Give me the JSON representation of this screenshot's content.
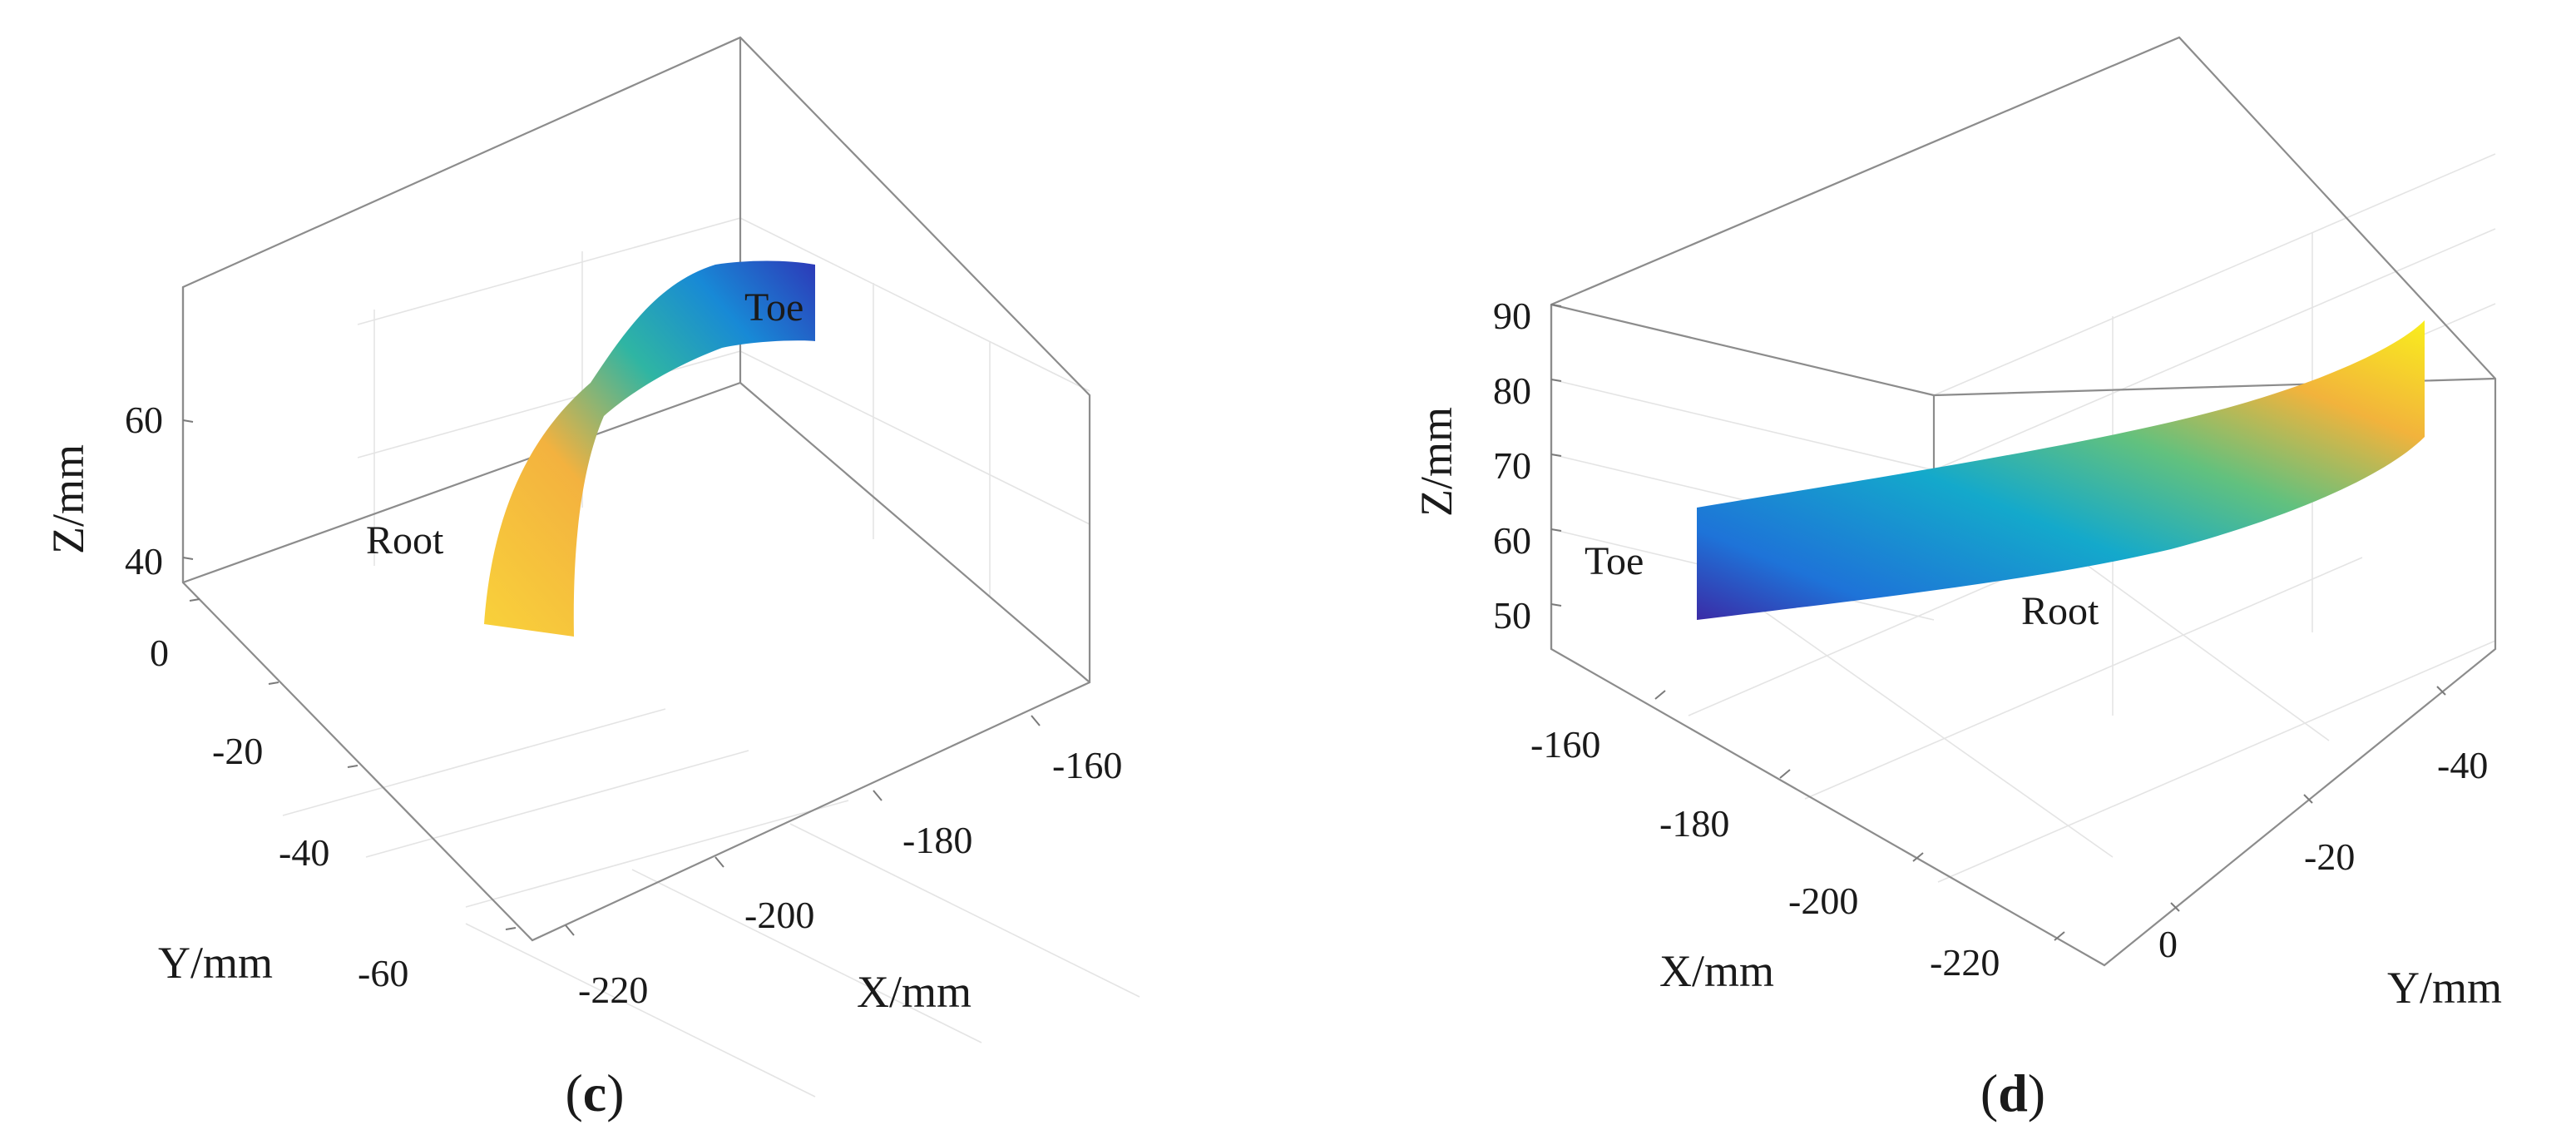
{
  "chart_data": [
    {
      "panel": "c",
      "type": "surface3d",
      "xlabel": "X/mm",
      "ylabel": "Y/mm",
      "zlabel": "Z/mm",
      "x_ticks": [
        "-220",
        "-200",
        "-180",
        "-160"
      ],
      "y_ticks": [
        "0",
        "-20",
        "-40",
        "-60"
      ],
      "z_ticks": [
        "40",
        "60"
      ],
      "xlim": [
        -225,
        -150
      ],
      "ylim": [
        -65,
        5
      ],
      "zlim": [
        35,
        80
      ],
      "grid": true,
      "colormap": "parula",
      "annotations": [
        {
          "text": "Toe"
        },
        {
          "text": "Root"
        }
      ],
      "label_open": "(",
      "label_letter": "c",
      "label_close": ")"
    },
    {
      "panel": "d",
      "type": "surface3d",
      "xlabel": "X/mm",
      "ylabel": "Y/mm",
      "zlabel": "Z/mm",
      "x_ticks": [
        "-160",
        "-180",
        "-200",
        "-220"
      ],
      "y_ticks": [
        "0",
        "-20",
        "-40"
      ],
      "z_ticks": [
        "50",
        "60",
        "70",
        "80",
        "90"
      ],
      "xlim": [
        -225,
        -150
      ],
      "ylim": [
        -50,
        10
      ],
      "zlim": [
        45,
        90
      ],
      "grid": true,
      "colormap": "parula",
      "annotations": [
        {
          "text": "Toe"
        },
        {
          "text": "Root"
        }
      ],
      "label_open": "(",
      "label_letter": "d",
      "label_close": ")"
    }
  ]
}
